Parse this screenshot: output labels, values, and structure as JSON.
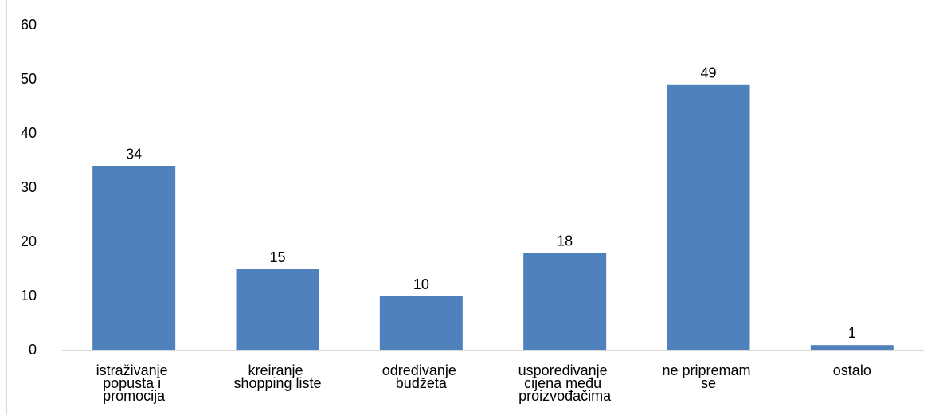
{
  "chart_data": {
    "type": "bar",
    "categories": [
      "istraživanje popusta i promocija",
      "kreiranje shopping liste",
      "određivanje budžeta",
      "uspoređivanje cijena među proizvođačima",
      "ne pripremam se",
      "ostalo"
    ],
    "values": [
      34,
      15,
      10,
      18,
      49,
      1
    ],
    "color": "#4f81bd",
    "ylim": [
      0,
      60
    ],
    "yticks": [
      0,
      10,
      20,
      30,
      40,
      50,
      60
    ],
    "grid": false
  }
}
